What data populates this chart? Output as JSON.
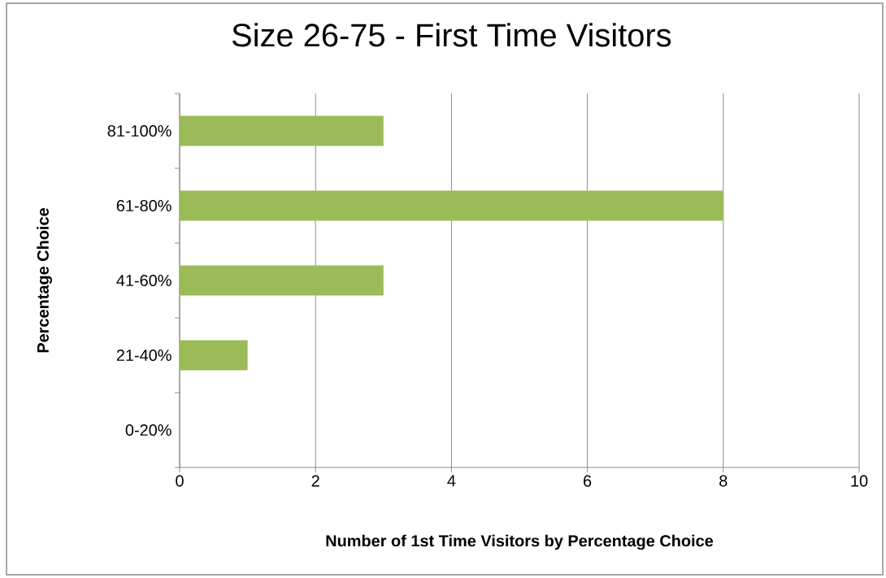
{
  "chart_data": {
    "type": "bar",
    "orientation": "horizontal",
    "title": "Size 26-75 - First Time Visitors",
    "xlabel": "Number of 1st Time Visitors by Percentage Choice",
    "ylabel": "Percentage Choice",
    "categories": [
      "81-100%",
      "61-80%",
      "41-60%",
      "21-40%",
      "0-20%"
    ],
    "values": [
      3,
      8,
      3,
      1,
      0
    ],
    "color": "#9bbb59",
    "xlim": [
      0,
      10
    ],
    "xticks": [
      0,
      2,
      4,
      6,
      8,
      10
    ],
    "grid": "x"
  }
}
